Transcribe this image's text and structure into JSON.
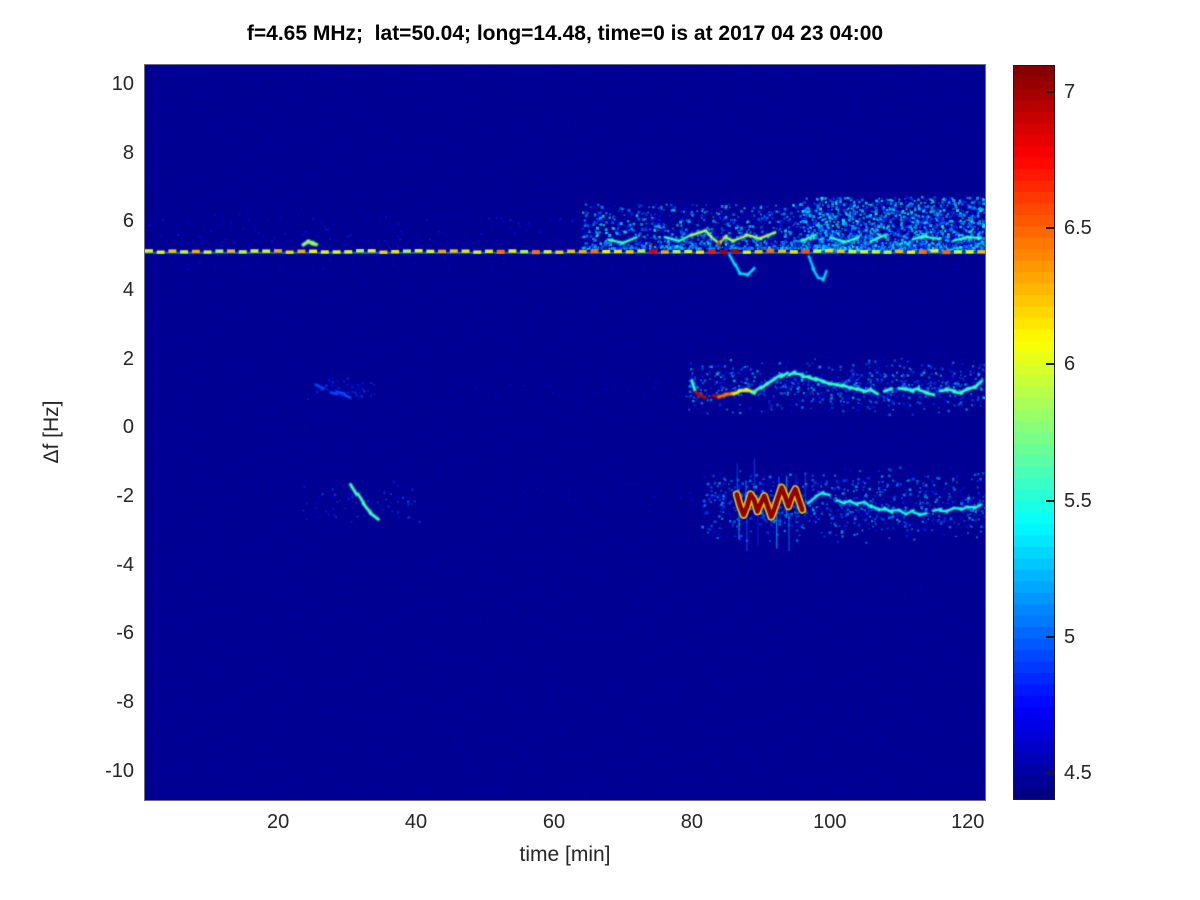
{
  "colors": {
    "page_background": "#ffffff",
    "axes_text": "#262626",
    "title_text": "#000000",
    "plot_floor": "#000092",
    "colormap": "jet"
  },
  "chart_data": {
    "type": "heatmap",
    "title": "f=4.65 MHz;  lat=50.04; long=14.48, time=0 is at 2017 04 23 04:00",
    "xlabel": "time [min]",
    "ylabel": "Δf [Hz]",
    "xlim": [
      0.7,
      122.5
    ],
    "ylim": [
      -10.85,
      10.55
    ],
    "xticks": [
      20,
      40,
      60,
      80,
      100,
      120
    ],
    "yticks": [
      10,
      8,
      6,
      4,
      2,
      0,
      -2,
      -4,
      -6,
      -8,
      -10
    ],
    "grid": false,
    "legend": "none",
    "colorbar": {
      "min": 4.4,
      "max": 7.1,
      "ticks": [
        4.5,
        5,
        5.5,
        6,
        6.5,
        7
      ],
      "steps": 64,
      "position": "right"
    },
    "background_value": 4.45,
    "features": [
      {
        "kind": "speckles",
        "label": "background-noise-mottle",
        "t": [
          0.7,
          122.5
        ],
        "f": [
          -10.85,
          10.55
        ],
        "count": 9000,
        "value": [
          4.4,
          4.6
        ],
        "size": [
          1.5,
          3
        ],
        "alpha": 0.3
      },
      {
        "kind": "speckles",
        "label": "above-carrier-faint-fuzz",
        "t": [
          0.7,
          122.5
        ],
        "f": [
          5.15,
          6.2
        ],
        "count": 520,
        "value": [
          4.55,
          4.9
        ],
        "size": [
          1.5,
          2.5
        ],
        "alpha": 0.5
      },
      {
        "kind": "speckles",
        "label": "below-carrier-faint-fuzz",
        "t": [
          0.7,
          122.5
        ],
        "f": [
          4.55,
          5.05
        ],
        "count": 220,
        "value": [
          4.5,
          4.8
        ],
        "size": [
          1.5,
          2.5
        ],
        "alpha": 0.5
      },
      {
        "kind": "speckles",
        "label": "upper-spread-cloud-early",
        "t": [
          64,
          96
        ],
        "f": [
          5.2,
          6.5
        ],
        "count": 1000,
        "value": [
          4.65,
          5.55
        ],
        "size": [
          1.5,
          3
        ],
        "pow": 2.0,
        "alpha": 0.75
      },
      {
        "kind": "speckles",
        "label": "upper-spread-cloud-late",
        "t": [
          96,
          122.5
        ],
        "f": [
          5.15,
          6.7
        ],
        "count": 1900,
        "value": [
          4.7,
          5.6
        ],
        "size": [
          1.5,
          3
        ],
        "pow": 1.7,
        "alpha": 0.8
      },
      {
        "kind": "speckles",
        "label": "plus1Hz-band-cloud",
        "t": [
          79,
          122.5
        ],
        "f": [
          0.35,
          2.05
        ],
        "count": 800,
        "value": [
          4.65,
          5.35
        ],
        "size": [
          1.5,
          2.8
        ],
        "tri": true,
        "alpha": 0.7
      },
      {
        "kind": "speckles",
        "label": "minus2Hz-band-cloud",
        "t": [
          81.5,
          122.5
        ],
        "f": [
          -3.4,
          -1.1
        ],
        "count": 900,
        "value": [
          4.65,
          5.35
        ],
        "size": [
          1.5,
          2.8
        ],
        "tri": true,
        "alpha": 0.7
      },
      {
        "kind": "speckles",
        "label": "plus1Hz-early-specks",
        "t": [
          23,
          34
        ],
        "f": [
          0.7,
          1.5
        ],
        "count": 70,
        "value": [
          4.6,
          5.0
        ],
        "size": [
          1.5,
          2.5
        ],
        "tri": true,
        "alpha": 0.6
      },
      {
        "kind": "speckles",
        "label": "minus2Hz-early-specks",
        "t": [
          23,
          41
        ],
        "f": [
          -2.9,
          -1.5
        ],
        "count": 90,
        "value": [
          4.6,
          5.05
        ],
        "size": [
          1.5,
          2.5
        ],
        "tri": true,
        "alpha": 0.6
      },
      {
        "kind": "speckles",
        "label": "plus1Hz-mid-specks",
        "t": [
          45,
          79
        ],
        "f": [
          0.7,
          1.5
        ],
        "count": 60,
        "value": [
          4.55,
          4.8
        ],
        "size": [
          1.5,
          2.2
        ],
        "tri": true,
        "alpha": 0.5
      },
      {
        "kind": "speckles",
        "label": "minus2Hz-mid-specks",
        "t": [
          55,
          81
        ],
        "f": [
          -2.6,
          -1.6
        ],
        "count": 55,
        "value": [
          4.55,
          4.8
        ],
        "size": [
          1.5,
          2.2
        ],
        "tri": true,
        "alpha": 0.5
      },
      {
        "kind": "vstreaks",
        "label": "minus2Hz-vertical-smears",
        "t": [
          86.5,
          97
        ],
        "f": [
          -3.1,
          -1.2
        ],
        "count": 14,
        "len": [
          0.5,
          1.5
        ],
        "value": [
          4.85,
          5.35
        ],
        "alpha": 0.6
      },
      {
        "kind": "trace",
        "label": "upper-cyan-ripple-trace",
        "thickness": 2,
        "broken": 0.28,
        "value": 5.55,
        "values": [
          {
            "t": [
              80,
              92
            ],
            "value": 5.85
          }
        ],
        "points": [
          [
            68,
            5.45
          ],
          [
            70,
            5.35
          ],
          [
            72,
            5.5
          ],
          [
            74,
            5.4
          ],
          [
            76,
            5.55
          ],
          [
            78,
            5.45
          ],
          [
            80,
            5.6
          ],
          [
            82,
            5.75
          ],
          [
            83,
            5.5
          ],
          [
            84,
            5.35
          ],
          [
            85,
            5.55
          ],
          [
            86,
            5.45
          ],
          [
            88,
            5.6
          ],
          [
            90,
            5.5
          ],
          [
            92,
            5.65
          ],
          [
            94,
            5.55
          ],
          [
            96,
            5.45
          ],
          [
            98,
            5.6
          ],
          [
            100,
            5.5
          ],
          [
            102,
            5.4
          ],
          [
            104,
            5.55
          ],
          [
            106,
            5.45
          ],
          [
            108,
            5.6
          ],
          [
            110,
            5.5
          ],
          [
            112,
            5.45
          ],
          [
            114,
            5.55
          ],
          [
            116,
            5.5
          ],
          [
            118,
            5.45
          ],
          [
            120,
            5.55
          ],
          [
            122,
            5.5
          ]
        ]
      },
      {
        "kind": "trace",
        "label": "below-carrier-curl-t86",
        "thickness": 2,
        "broken": 0,
        "value": 5.35,
        "points": [
          [
            85.5,
            5.05
          ],
          [
            86.2,
            4.75
          ],
          [
            87,
            4.5
          ],
          [
            88,
            4.42
          ],
          [
            89,
            4.6
          ]
        ]
      },
      {
        "kind": "trace",
        "label": "below-carrier-curl-t98",
        "thickness": 2,
        "broken": 0,
        "value": 5.3,
        "points": [
          [
            97,
            5.0
          ],
          [
            97.6,
            4.6
          ],
          [
            98.3,
            4.35
          ],
          [
            99,
            4.3
          ],
          [
            99.6,
            4.55
          ]
        ]
      },
      {
        "kind": "trace",
        "label": "plus1Hz-main-trace",
        "thickness": 2.5,
        "broken": 0.12,
        "value": 5.55,
        "values": [
          {
            "t": [
              80.5,
              83.5
            ],
            "value": 6.9
          },
          {
            "t": [
              83.5,
              86
            ],
            "value": 6.45
          },
          {
            "t": [
              86,
              89
            ],
            "value": 6.0
          }
        ],
        "points": [
          [
            80,
            1.35
          ],
          [
            80.5,
            1.05
          ],
          [
            81,
            0.95
          ],
          [
            82,
            0.9
          ],
          [
            83,
            0.95
          ],
          [
            84,
            0.9
          ],
          [
            85,
            0.95
          ],
          [
            86,
            1.0
          ],
          [
            87,
            1.05
          ],
          [
            88,
            1.1
          ],
          [
            89,
            1.0
          ],
          [
            90,
            1.15
          ],
          [
            91,
            1.3
          ],
          [
            92,
            1.4
          ],
          [
            93,
            1.5
          ],
          [
            94,
            1.55
          ],
          [
            95,
            1.6
          ],
          [
            96,
            1.5
          ],
          [
            97,
            1.45
          ],
          [
            98,
            1.4
          ],
          [
            99,
            1.35
          ],
          [
            100,
            1.3
          ],
          [
            101,
            1.25
          ],
          [
            102,
            1.2
          ],
          [
            103,
            1.15
          ],
          [
            104,
            1.1
          ],
          [
            105,
            1.05
          ],
          [
            106,
            1.1
          ],
          [
            107,
            1.0
          ],
          [
            108,
            1.05
          ],
          [
            109,
            1.1
          ],
          [
            110,
            1.15
          ],
          [
            111,
            1.1
          ],
          [
            112,
            1.05
          ],
          [
            113,
            1.1
          ],
          [
            114,
            1.0
          ],
          [
            115,
            0.95
          ],
          [
            116,
            1.05
          ],
          [
            117,
            1.1
          ],
          [
            118,
            1.05
          ],
          [
            119,
            1.0
          ],
          [
            120,
            1.1
          ],
          [
            121,
            1.15
          ],
          [
            122,
            1.35
          ]
        ]
      },
      {
        "kind": "zigzag",
        "label": "minus2Hz-hot-zigzag",
        "value": 7.05,
        "outline_value": 6.2,
        "thickness": 4.5,
        "outline_thickness": 8,
        "points": [
          [
            86.5,
            -1.95
          ],
          [
            87,
            -2.3
          ],
          [
            87.5,
            -2.55
          ],
          [
            88,
            -2.3
          ],
          [
            88.5,
            -1.95
          ],
          [
            89,
            -2.1
          ],
          [
            89.5,
            -2.45
          ],
          [
            90,
            -2.2
          ],
          [
            90.5,
            -2.0
          ],
          [
            91,
            -2.3
          ],
          [
            91.5,
            -2.6
          ],
          [
            92,
            -2.35
          ],
          [
            92.5,
            -2.05
          ],
          [
            93,
            -1.75
          ],
          [
            93.5,
            -2.0
          ],
          [
            94,
            -2.3
          ],
          [
            94.5,
            -2.0
          ],
          [
            95,
            -1.8
          ],
          [
            95.5,
            -2.1
          ],
          [
            96,
            -2.4
          ]
        ]
      },
      {
        "kind": "trace",
        "label": "minus2Hz-cyan-trace",
        "thickness": 2,
        "broken": 0.18,
        "value": 5.5,
        "points": [
          [
            96,
            -2.4
          ],
          [
            97,
            -2.2
          ],
          [
            98,
            -2.0
          ],
          [
            99,
            -1.9
          ],
          [
            100,
            -2.0
          ],
          [
            101,
            -2.1
          ],
          [
            102,
            -2.2
          ],
          [
            103,
            -2.15
          ],
          [
            104,
            -2.25
          ],
          [
            105,
            -2.2
          ],
          [
            106,
            -2.3
          ],
          [
            107,
            -2.4
          ],
          [
            108,
            -2.35
          ],
          [
            109,
            -2.45
          ],
          [
            110,
            -2.4
          ],
          [
            111,
            -2.5
          ],
          [
            112,
            -2.45
          ],
          [
            113,
            -2.55
          ],
          [
            114,
            -2.5
          ],
          [
            115,
            -2.45
          ],
          [
            116,
            -2.4
          ],
          [
            117,
            -2.45
          ],
          [
            118,
            -2.35
          ],
          [
            119,
            -2.4
          ],
          [
            120,
            -2.3
          ],
          [
            121,
            -2.35
          ],
          [
            122,
            -2.25
          ]
        ]
      },
      {
        "kind": "trace",
        "label": "minus2Hz-early-streak",
        "thickness": 2.5,
        "broken": 0,
        "value": 5.6,
        "points": [
          [
            30.5,
            -1.7
          ],
          [
            31.5,
            -1.95
          ],
          [
            32.5,
            -2.2
          ],
          [
            33.5,
            -2.5
          ],
          [
            34.5,
            -2.7
          ]
        ]
      },
      {
        "kind": "trace",
        "label": "plus1Hz-early-wisp",
        "thickness": 2,
        "broken": 0.3,
        "value": 4.95,
        "points": [
          [
            25.5,
            1.25
          ],
          [
            26.5,
            1.15
          ],
          [
            27.5,
            1.05
          ],
          [
            28.5,
            1.0
          ],
          [
            29.5,
            0.95
          ],
          [
            30.5,
            0.9
          ]
        ]
      },
      {
        "kind": "trace",
        "label": "carrier-blob-t24",
        "thickness": 3,
        "broken": 0,
        "value": 5.8,
        "points": [
          [
            23.8,
            5.3
          ],
          [
            24.4,
            5.4
          ],
          [
            25.0,
            5.35
          ],
          [
            25.6,
            5.3
          ]
        ]
      },
      {
        "kind": "line",
        "label": "carrier-underlay",
        "f": 5.08,
        "t": [
          0.7,
          122.5
        ],
        "value": 5.3,
        "alpha": 0.5,
        "thickness": 2
      },
      {
        "kind": "dashed",
        "label": "carrier-dashed-line",
        "f": 5.12,
        "t": [
          0.7,
          122.5
        ],
        "dash": 1.15,
        "gap": 0.55,
        "thickness": 3.4,
        "value": 6.1,
        "jitter": 0.4,
        "hot": [
          {
            "t": [
              53.5,
              56.5
            ],
            "value": 5.8
          },
          {
            "t": [
              73.4,
              74.8
            ],
            "value": 6.85
          },
          {
            "t": [
              80.8,
              83.2
            ],
            "value": 6.7
          },
          {
            "t": [
              83.2,
              86.6
            ],
            "value": 6.95
          },
          {
            "t": [
              95,
              97.2
            ],
            "value": 6.5
          },
          {
            "t": [
              115.5,
              117.5
            ],
            "value": 6.55
          }
        ]
      },
      {
        "kind": "speckles",
        "label": "carrier-red-specks",
        "t": [
          83.5,
          85.5
        ],
        "f": [
          5.25,
          5.5
        ],
        "count": 3,
        "value": [
          6.9,
          7.05
        ],
        "size": [
          2.5,
          3.5
        ],
        "alpha": 0.95
      },
      {
        "kind": "speckles",
        "label": "carrier-red-speck-t74",
        "t": [
          73.4,
          74.6
        ],
        "f": [
          5.1,
          5.35
        ],
        "count": 2,
        "value": [
          6.8,
          7.0
        ],
        "size": [
          2,
          3
        ],
        "alpha": 0.9
      }
    ]
  }
}
